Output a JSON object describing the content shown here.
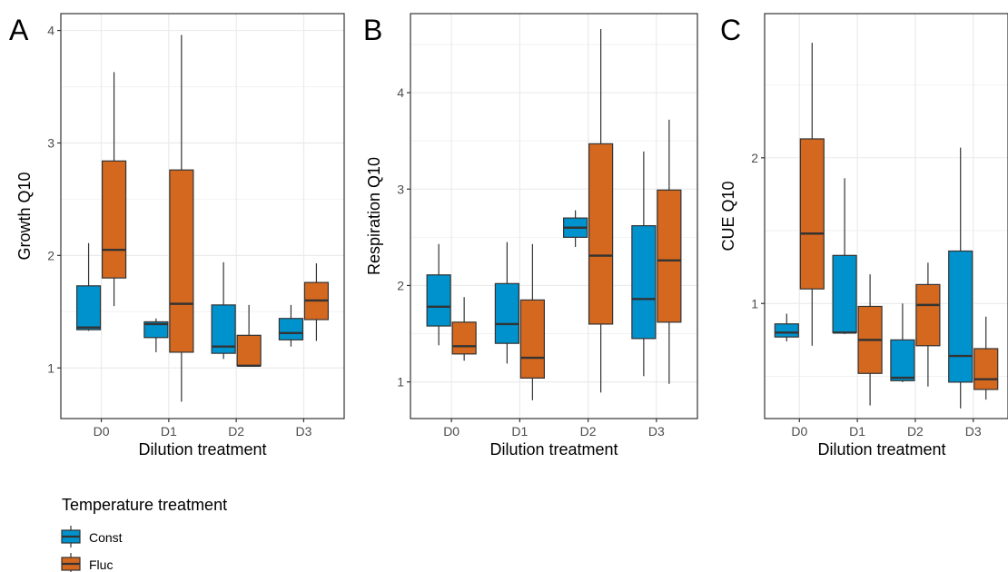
{
  "legend": {
    "title": "Temperature treatment",
    "items": [
      {
        "name": "Const",
        "color": "#0092CC"
      },
      {
        "name": "Fluc",
        "color": "#D5681F"
      }
    ]
  },
  "chart_data": [
    {
      "type": "boxplot",
      "tag": "A",
      "xlabel": "Dilution treatment",
      "ylabel": "Growth Q10",
      "categories": [
        "D0",
        "D1",
        "D2",
        "D3"
      ],
      "ylim": [
        0.55,
        4.15
      ],
      "yticks": [
        1,
        2,
        3,
        4
      ],
      "grid": true,
      "series": [
        {
          "name": "Const",
          "boxes": [
            {
              "min": 1.33,
              "q1": 1.34,
              "median": 1.36,
              "q3": 1.73,
              "max": 2.11
            },
            {
              "min": 1.14,
              "q1": 1.27,
              "median": 1.39,
              "q3": 1.41,
              "max": 1.44
            },
            {
              "min": 1.08,
              "q1": 1.13,
              "median": 1.19,
              "q3": 1.56,
              "max": 1.94
            },
            {
              "min": 1.19,
              "q1": 1.25,
              "median": 1.31,
              "q3": 1.44,
              "max": 1.56
            }
          ]
        },
        {
          "name": "Fluc",
          "boxes": [
            {
              "min": 1.55,
              "q1": 1.8,
              "median": 2.05,
              "q3": 2.84,
              "max": 3.63
            },
            {
              "min": 0.7,
              "q1": 1.14,
              "median": 1.57,
              "q3": 2.76,
              "max": 3.96
            },
            {
              "min": 1.01,
              "q1": 1.02,
              "median": 1.02,
              "q3": 1.29,
              "max": 1.56
            },
            {
              "min": 1.24,
              "q1": 1.43,
              "median": 1.6,
              "q3": 1.76,
              "max": 1.93
            }
          ]
        }
      ]
    },
    {
      "type": "boxplot",
      "tag": "B",
      "xlabel": "Dilution treatment",
      "ylabel": "Respiration Q10",
      "categories": [
        "D0",
        "D1",
        "D2",
        "D3"
      ],
      "ylim": [
        0.62,
        4.82
      ],
      "yticks": [
        1,
        2,
        3,
        4
      ],
      "grid": true,
      "series": [
        {
          "name": "Const",
          "boxes": [
            {
              "min": 1.38,
              "q1": 1.58,
              "median": 1.78,
              "q3": 2.11,
              "max": 2.43
            },
            {
              "min": 1.19,
              "q1": 1.4,
              "median": 1.6,
              "q3": 2.02,
              "max": 2.45
            },
            {
              "min": 2.4,
              "q1": 2.5,
              "median": 2.6,
              "q3": 2.7,
              "max": 2.78
            },
            {
              "min": 1.06,
              "q1": 1.45,
              "median": 1.86,
              "q3": 2.62,
              "max": 3.39
            }
          ]
        },
        {
          "name": "Fluc",
          "boxes": [
            {
              "min": 1.22,
              "q1": 1.29,
              "median": 1.37,
              "q3": 1.62,
              "max": 1.88
            },
            {
              "min": 0.81,
              "q1": 1.04,
              "median": 1.25,
              "q3": 1.85,
              "max": 2.43
            },
            {
              "min": 0.89,
              "q1": 1.6,
              "median": 2.31,
              "q3": 3.47,
              "max": 4.66
            },
            {
              "min": 0.98,
              "q1": 1.62,
              "median": 2.26,
              "q3": 2.99,
              "max": 3.72
            }
          ]
        }
      ]
    },
    {
      "type": "boxplot",
      "tag": "C",
      "xlabel": "Dilution treatment",
      "ylabel": "CUE Q10",
      "categories": [
        "D0",
        "D1",
        "D2",
        "D3"
      ],
      "ylim": [
        0.21,
        2.99
      ],
      "yticks": [
        1,
        2
      ],
      "grid": true,
      "series": [
        {
          "name": "Const",
          "boxes": [
            {
              "min": 0.74,
              "q1": 0.77,
              "median": 0.8,
              "q3": 0.86,
              "max": 0.93
            },
            {
              "min": 0.79,
              "q1": 0.8,
              "median": 0.8,
              "q3": 1.33,
              "max": 1.86
            },
            {
              "min": 0.46,
              "q1": 0.47,
              "median": 0.49,
              "q3": 0.75,
              "max": 1.0
            },
            {
              "min": 0.28,
              "q1": 0.46,
              "median": 0.64,
              "q3": 1.36,
              "max": 2.07
            }
          ]
        },
        {
          "name": "Fluc",
          "boxes": [
            {
              "min": 0.71,
              "q1": 1.1,
              "median": 1.48,
              "q3": 2.13,
              "max": 2.79
            },
            {
              "min": 0.3,
              "q1": 0.52,
              "median": 0.75,
              "q3": 0.98,
              "max": 1.2
            },
            {
              "min": 0.43,
              "q1": 0.71,
              "median": 0.99,
              "q3": 1.13,
              "max": 1.28
            },
            {
              "min": 0.34,
              "q1": 0.41,
              "median": 0.48,
              "q3": 0.69,
              "max": 0.91
            }
          ]
        }
      ]
    }
  ]
}
